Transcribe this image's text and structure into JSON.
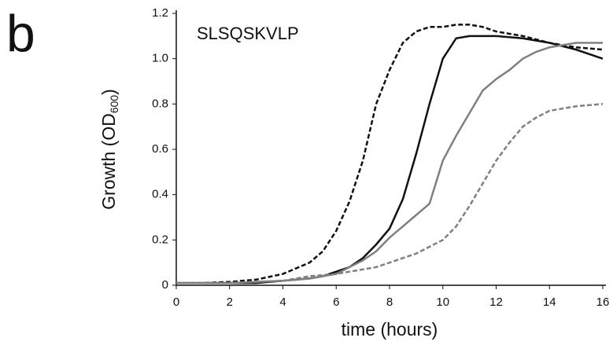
{
  "chart_data": {
    "type": "line",
    "panel_label": "b",
    "annotation": "SLSQSKVLP",
    "x_label": "time (hours)",
    "y_label": [
      "Growth (OD",
      "600",
      ")"
    ],
    "xlim": [
      0,
      16
    ],
    "xticks": [
      0,
      2,
      4,
      6,
      8,
      10,
      12,
      14,
      16
    ],
    "ylim": [
      0,
      1.2
    ],
    "yticks": [
      0,
      0.2,
      0.4,
      0.6,
      0.8,
      {
        "value": 1,
        "label": "1.0"
      },
      1.2
    ],
    "series": [
      {
        "color": "#111111",
        "dashed": true,
        "x": [
          0,
          1,
          2,
          3,
          4,
          5,
          5.5,
          6,
          6.5,
          7,
          7.5,
          8,
          8.5,
          9,
          9.5,
          10,
          10.5,
          11,
          11.5,
          12,
          13,
          14,
          15,
          16
        ],
        "values": [
          0.01,
          0.01,
          0.015,
          0.025,
          0.05,
          0.1,
          0.15,
          0.24,
          0.37,
          0.55,
          0.8,
          0.95,
          1.07,
          1.12,
          1.14,
          1.14,
          1.15,
          1.15,
          1.14,
          1.12,
          1.1,
          1.07,
          1.05,
          1.04
        ]
      },
      {
        "color": "#111111",
        "dashed": false,
        "x": [
          0,
          2,
          3,
          4,
          5,
          5.5,
          6,
          6.5,
          7,
          7.5,
          8,
          8.5,
          9,
          9.5,
          10,
          10.5,
          11,
          12,
          13,
          14,
          15,
          16
        ],
        "values": [
          0.01,
          0.01,
          0.01,
          0.02,
          0.03,
          0.04,
          0.06,
          0.08,
          0.12,
          0.18,
          0.25,
          0.38,
          0.58,
          0.8,
          1.0,
          1.09,
          1.1,
          1.1,
          1.09,
          1.07,
          1.04,
          1.0
        ]
      },
      {
        "color": "#808080",
        "dashed": false,
        "x": [
          0,
          2,
          4,
          5,
          6,
          6.5,
          7,
          7.5,
          8,
          8.5,
          9,
          9.5,
          10,
          10.5,
          11,
          11.5,
          12,
          12.5,
          13,
          13.5,
          14,
          14.5,
          15,
          15.5,
          16
        ],
        "values": [
          0.01,
          0.01,
          0.02,
          0.03,
          0.05,
          0.08,
          0.11,
          0.15,
          0.21,
          0.26,
          0.31,
          0.36,
          0.55,
          0.66,
          0.76,
          0.86,
          0.91,
          0.95,
          1.0,
          1.03,
          1.05,
          1.06,
          1.07,
          1.07,
          1.07
        ]
      },
      {
        "color": "#808080",
        "dashed": true,
        "x": [
          0,
          2,
          4,
          5,
          6,
          6.5,
          7,
          7.5,
          8,
          9,
          10,
          10.5,
          11,
          11.5,
          12,
          12.5,
          13,
          13.5,
          14,
          15,
          16
        ],
        "values": [
          0.01,
          0.01,
          0.02,
          0.04,
          0.05,
          0.06,
          0.07,
          0.08,
          0.1,
          0.14,
          0.2,
          0.26,
          0.35,
          0.45,
          0.55,
          0.63,
          0.7,
          0.74,
          0.77,
          0.79,
          0.8
        ]
      }
    ]
  }
}
